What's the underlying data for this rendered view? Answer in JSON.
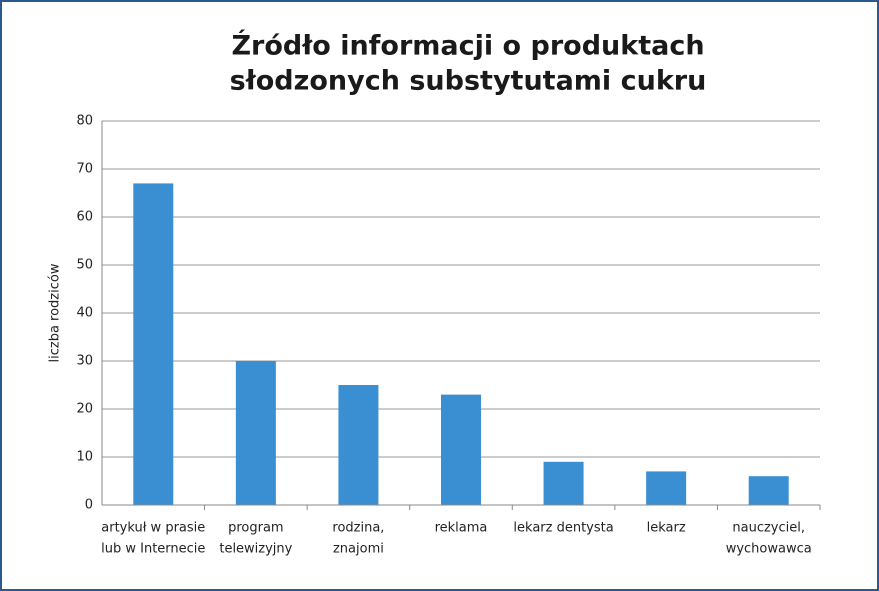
{
  "chart_data": {
    "type": "bar",
    "title": [
      "Źródło informacji o produktach",
      "słodzonych substytutami cukru"
    ],
    "y_label": "liczba rodziców",
    "categories": [
      [
        "artykuł w prasie",
        "lub w Internecie"
      ],
      [
        "program",
        "telewizyjny"
      ],
      [
        "rodzina,",
        "znajomi"
      ],
      [
        "reklama"
      ],
      [
        "lekarz dentysta"
      ],
      [
        "lekarz"
      ],
      [
        "nauczyciel,",
        "wychowawca"
      ]
    ],
    "values": [
      67,
      30,
      25,
      23,
      9,
      7,
      6
    ],
    "color": "#3a8fd3",
    "ylim": [
      0,
      80
    ],
    "yticks": [
      0,
      10,
      20,
      30,
      40,
      50,
      60,
      70,
      80
    ],
    "grid": true
  }
}
